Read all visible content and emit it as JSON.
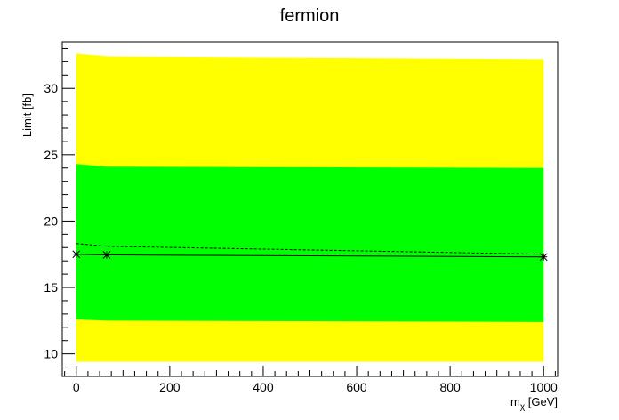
{
  "chart_data": {
    "type": "line",
    "title": "fermion",
    "xlabel_main": "m",
    "xlabel_sub": "χ",
    "xlabel_unit": " [GeV]",
    "ylabel": "Limit [fb]",
    "xlim": [
      -30,
      1030
    ],
    "ylim": [
      8.3,
      33.5
    ],
    "x_ticks": [
      0,
      200,
      400,
      600,
      800,
      1000
    ],
    "y_ticks": [
      10,
      15,
      20,
      25,
      30
    ],
    "grid": false,
    "x": [
      0,
      65,
      1000
    ],
    "series": [
      {
        "role": "observed",
        "style": "solid-markers",
        "values": [
          17.5,
          17.45,
          17.3
        ]
      },
      {
        "role": "expected",
        "style": "dashed",
        "values": [
          18.3,
          18.1,
          17.5
        ]
      }
    ],
    "bands": [
      {
        "role": "2-sigma",
        "color": "#ffff00",
        "lower": [
          9.4,
          9.4,
          9.4
        ],
        "upper": [
          32.6,
          32.4,
          32.2
        ]
      },
      {
        "role": "1-sigma",
        "color": "#00ff00",
        "lower": [
          12.6,
          12.5,
          12.4
        ],
        "upper": [
          24.3,
          24.1,
          24.0
        ]
      }
    ]
  }
}
